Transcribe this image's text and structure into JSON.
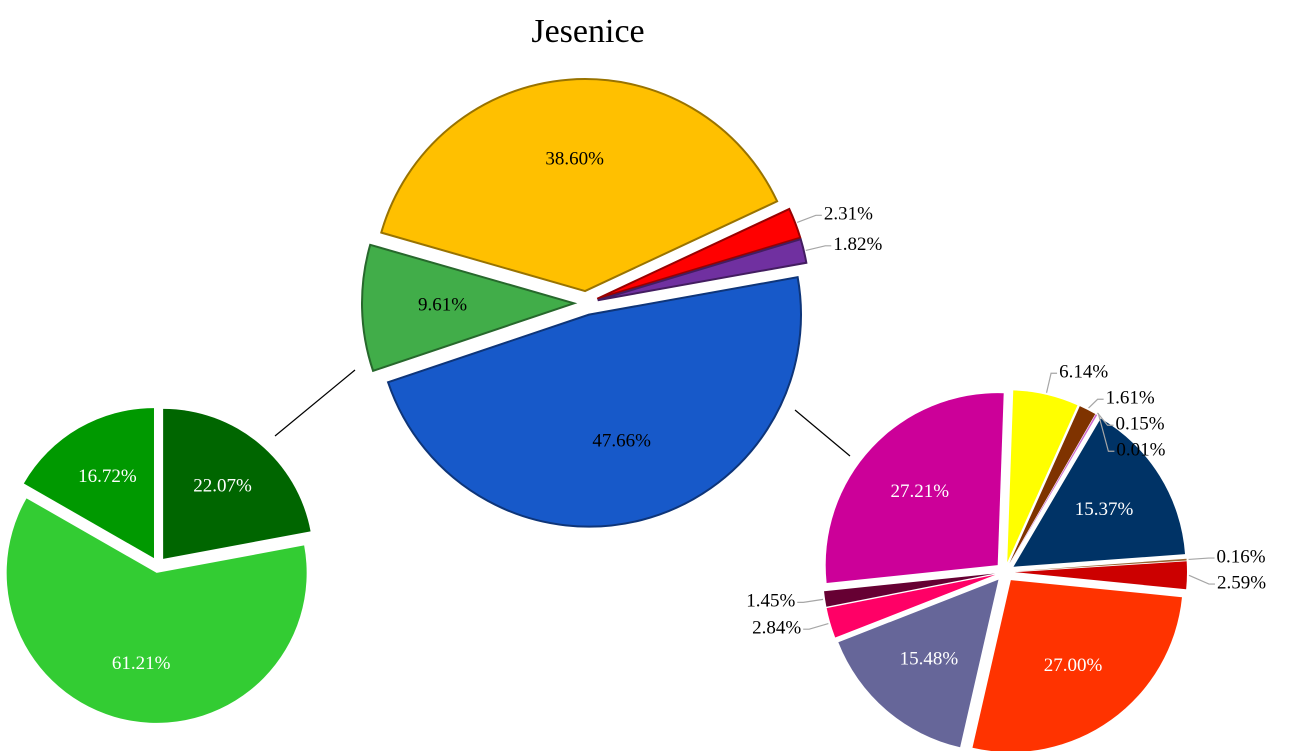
{
  "chart_data": [
    {
      "type": "pie",
      "title": "Jesenice",
      "values": [
        38.6,
        2.31,
        1.82,
        47.66,
        9.61
      ],
      "value_labels": [
        "38.60%",
        "2.31%",
        "1.82%",
        "47.66%",
        "9.61%"
      ],
      "colors": [
        "#FFC000",
        "#FF0000",
        "#7030A0",
        "#1759C9",
        "#41AD49"
      ]
    },
    {
      "type": "pie",
      "values": [
        22.07,
        61.21,
        16.72
      ],
      "value_labels": [
        "22.07%",
        "61.21%",
        "16.72%"
      ],
      "colors": [
        "#006600",
        "#33CC33",
        "#009900"
      ]
    },
    {
      "type": "pie",
      "values": [
        6.14,
        1.61,
        0.15,
        0.01,
        15.37,
        0.16,
        2.59,
        27.0,
        15.48,
        2.84,
        1.45,
        27.21
      ],
      "value_labels": [
        "6.14%",
        "1.61%",
        "0.15%",
        "0.01%",
        "15.37%",
        "0.16%",
        "2.59%",
        "27.00%",
        "15.48%",
        "2.84%",
        "1.45%",
        "27.21%"
      ],
      "colors": [
        "#FFFF00",
        "#7F3300",
        "#CC66CC",
        "#E0A0E0",
        "#003366",
        "#996633",
        "#CC0000",
        "#FF3300",
        "#666699",
        "#FF0066",
        "#660033",
        "#CC0099"
      ]
    }
  ]
}
